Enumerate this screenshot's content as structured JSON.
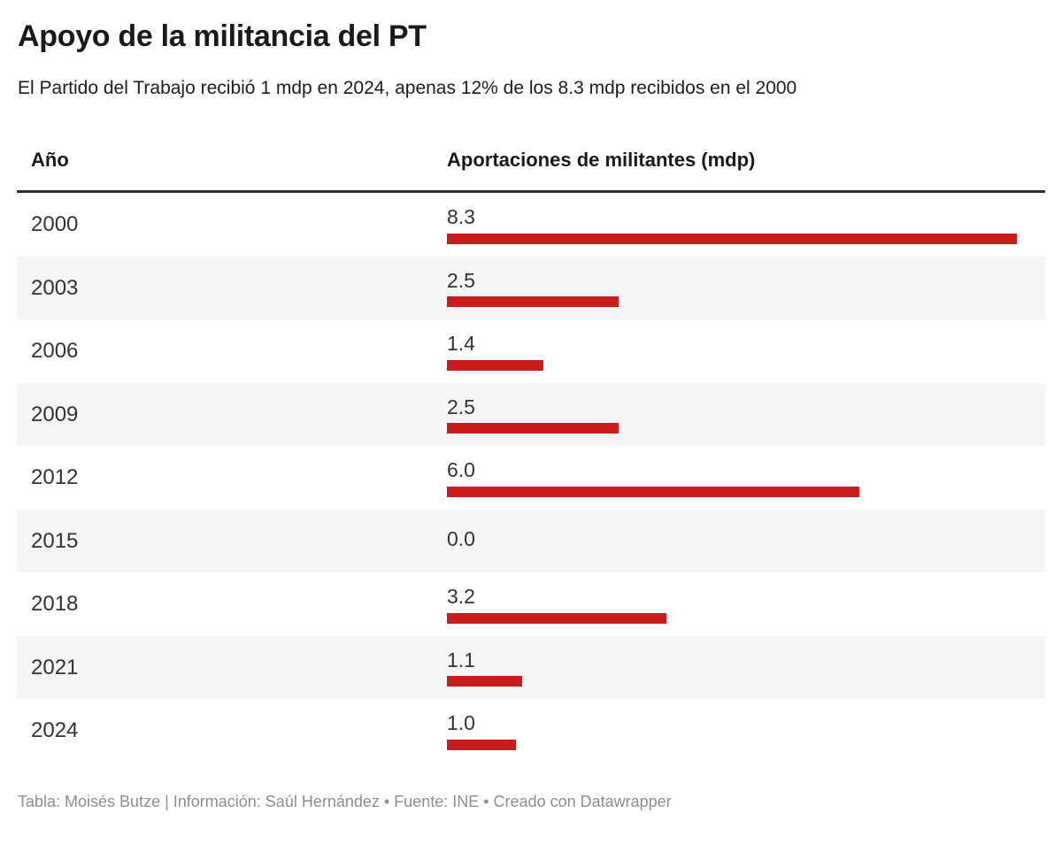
{
  "header": {
    "title": "Apoyo de la militancia del PT",
    "subtitle": "El Partido del Trabajo recibió 1 mdp en 2024, apenas 12% de los 8.3 mdp recibidos en el 2000"
  },
  "table": {
    "columns": [
      "Año",
      "Aportaciones de militantes (mdp)"
    ],
    "rows": [
      {
        "year": "2000",
        "label": "8.3",
        "value": 8.3
      },
      {
        "year": "2003",
        "label": "2.5",
        "value": 2.5
      },
      {
        "year": "2006",
        "label": "1.4",
        "value": 1.4
      },
      {
        "year": "2009",
        "label": "2.5",
        "value": 2.5
      },
      {
        "year": "2012",
        "label": "6.0",
        "value": 6.0
      },
      {
        "year": "2015",
        "label": "0.0",
        "value": 0.0
      },
      {
        "year": "2018",
        "label": "3.2",
        "value": 3.2
      },
      {
        "year": "2021",
        "label": "1.1",
        "value": 1.1
      },
      {
        "year": "2024",
        "label": "1.0",
        "value": 1.0
      }
    ]
  },
  "chart_data": {
    "type": "bar",
    "orientation": "horizontal",
    "title": "Apoyo de la militancia del PT",
    "subtitle": "El Partido del Trabajo recibió 1 mdp en 2024, apenas 12% de los 8.3 mdp recibidos en el 2000",
    "categories": [
      "2000",
      "2003",
      "2006",
      "2009",
      "2012",
      "2015",
      "2018",
      "2021",
      "2024"
    ],
    "values": [
      8.3,
      2.5,
      1.4,
      2.5,
      6.0,
      0.0,
      3.2,
      1.1,
      1.0
    ],
    "value_labels": [
      "8.3",
      "2.5",
      "1.4",
      "2.5",
      "6.0",
      "0.0",
      "3.2",
      "1.1",
      "1.0"
    ],
    "xlabel": "Aportaciones de militantes (mdp)",
    "ylabel": "Año",
    "xlim": [
      0,
      8.3
    ],
    "grid": false,
    "legend": false,
    "bar_color": "#c71e1d"
  },
  "colors": {
    "bar": "#c71e1d",
    "alt_row_background": "#f5f5f5",
    "header_rule": "#2e2e2e",
    "text_primary": "#1a1a1a",
    "text_secondary": "#333333",
    "footer_text": "#8e8e8e"
  },
  "footer": {
    "text": "Tabla: Moisés Butze | Información: Saúl Hernández • Fuente: INE • Creado con Datawrapper"
  }
}
